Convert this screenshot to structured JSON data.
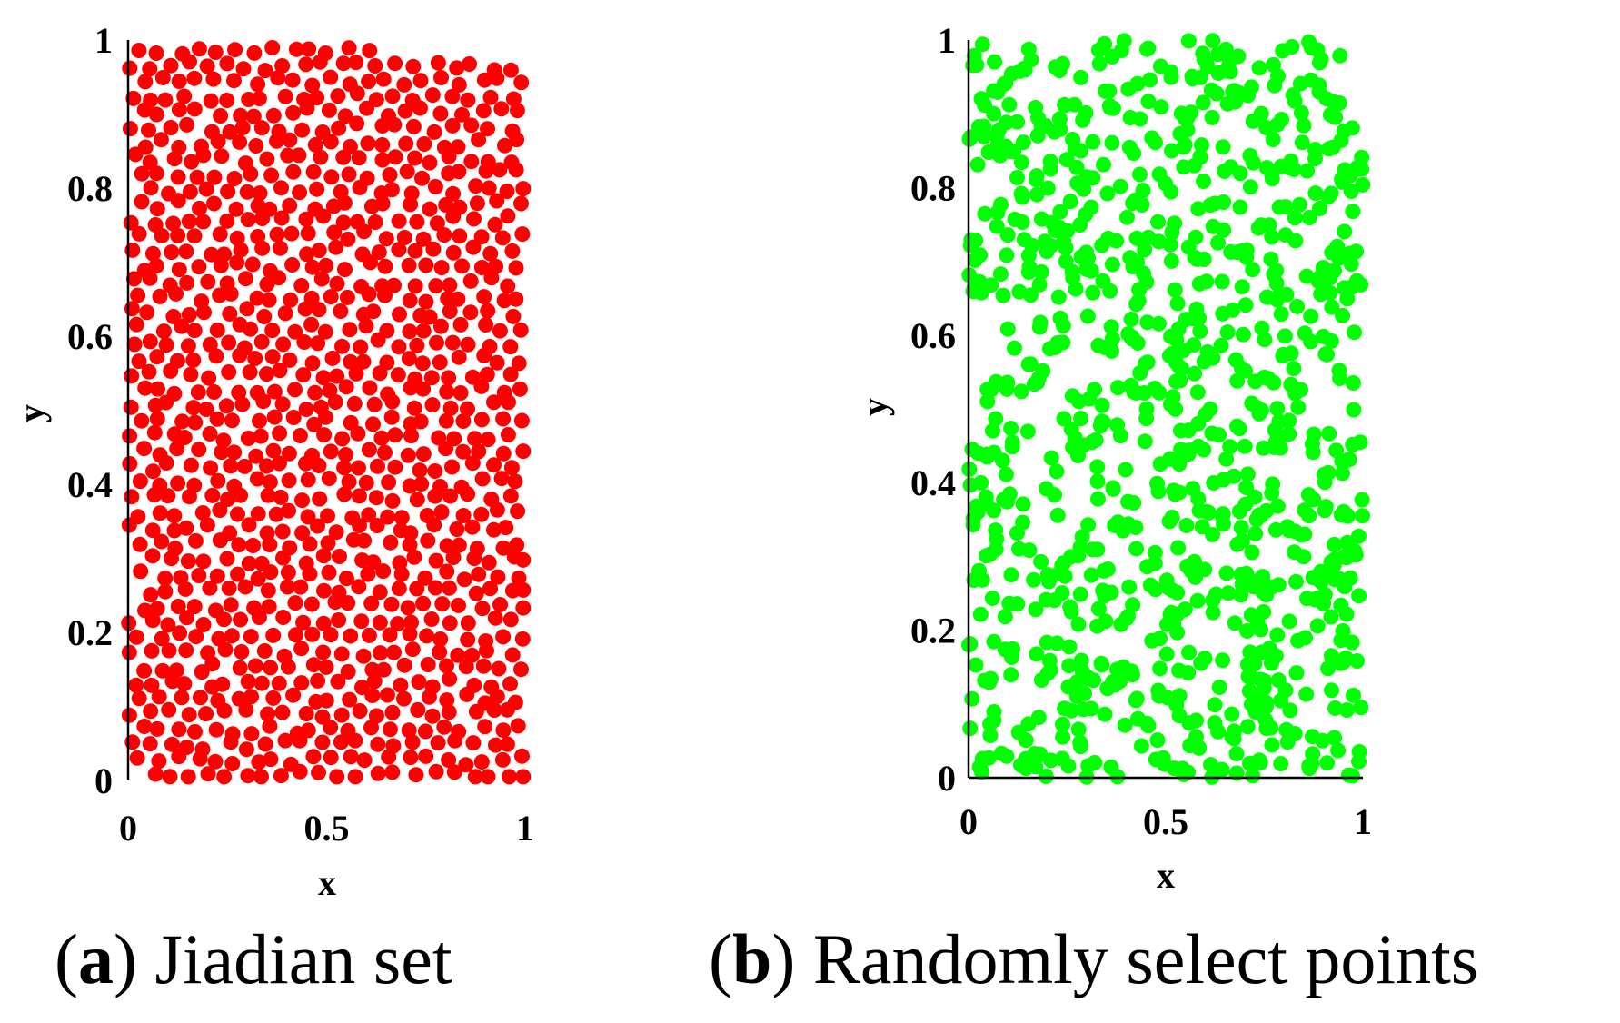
{
  "chart_data": [
    {
      "type": "scatter",
      "panel": "a",
      "caption_letter": "a",
      "caption_text": "Jiadian set",
      "xlabel": "x",
      "ylabel": "y",
      "xlim": [
        0,
        1
      ],
      "ylim": [
        0,
        1
      ],
      "x_ticks": [
        "0",
        "0.5",
        "1"
      ],
      "y_ticks": [
        "0",
        "0.2",
        "0.4",
        "0.6",
        "0.8",
        "1"
      ],
      "x_tick_values": [
        0,
        0.5,
        1
      ],
      "y_tick_values": [
        0,
        0.2,
        0.4,
        0.6,
        0.8,
        1
      ],
      "grid": false,
      "color": "#ff0000",
      "points_count": 1000,
      "distribution": "quasi-uniform lattice (good point set) filling unit square"
    },
    {
      "type": "scatter",
      "panel": "b",
      "caption_letter": "b",
      "caption_text": "Randomly select points",
      "xlabel": "x",
      "ylabel": "y",
      "xlim": [
        0,
        1
      ],
      "ylim": [
        0,
        1
      ],
      "x_ticks": [
        "0",
        "0.5",
        "1"
      ],
      "y_ticks": [
        "0",
        "0.2",
        "0.4",
        "0.6",
        "0.8",
        "1"
      ],
      "x_tick_values": [
        0,
        0.5,
        1
      ],
      "y_tick_values": [
        0,
        0.2,
        0.4,
        0.6,
        0.8,
        1
      ],
      "grid": false,
      "color": "#00ff00",
      "points_count": 1000,
      "distribution": "uniform random in unit square"
    }
  ]
}
